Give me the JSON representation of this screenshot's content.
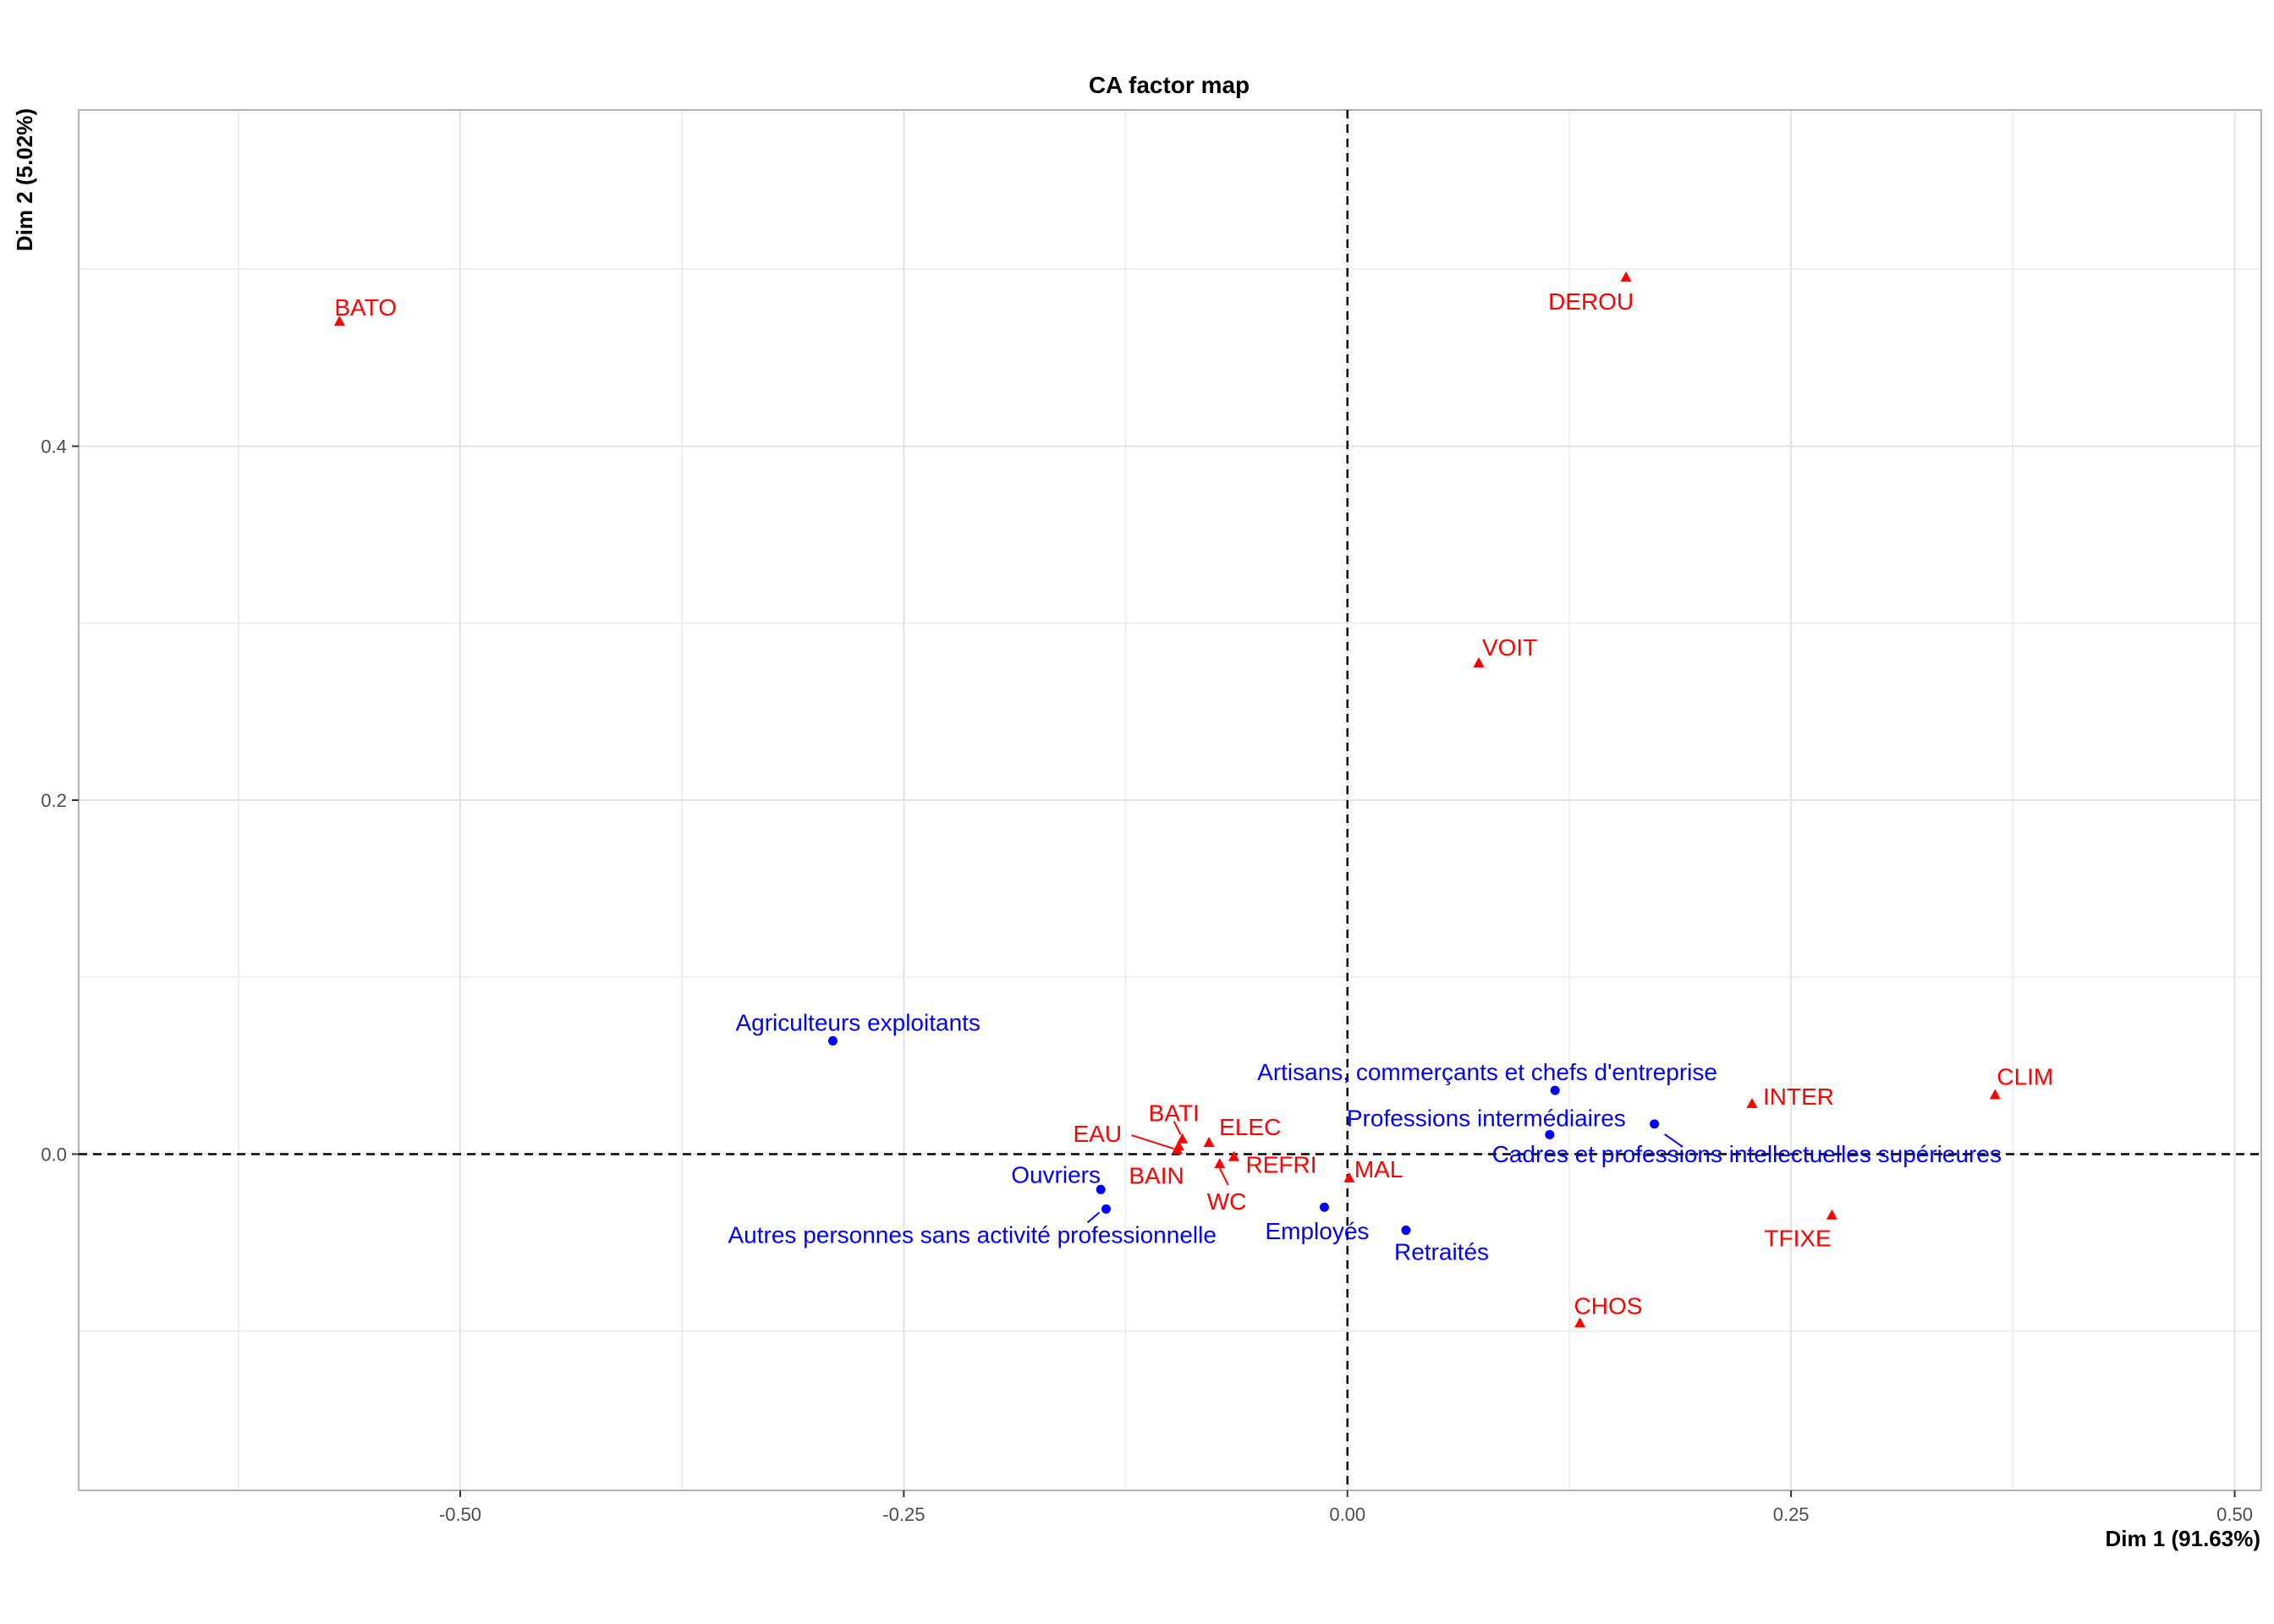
{
  "chart_data": {
    "type": "scatter",
    "title": "CA factor map",
    "xlabel": "Dim 1 (91.63%)",
    "ylabel": "Dim 2 (5.02%)",
    "xlim": [
      -0.715,
      0.515
    ],
    "ylim": [
      -0.19,
      0.59
    ],
    "x_ticks": [
      -0.5,
      -0.25,
      0.0,
      0.25,
      0.5
    ],
    "x_tick_labels": [
      "-0.50",
      "-0.25",
      "0.00",
      "0.25",
      "0.50"
    ],
    "y_ticks": [
      0.0,
      0.2,
      0.4
    ],
    "y_tick_labels": [
      "0.0",
      "0.2",
      "0.4"
    ],
    "grid": true,
    "reference_lines": {
      "x": 0,
      "y": 0,
      "style": "dashed"
    },
    "series": [
      {
        "group": "rows",
        "color": "#0000ff",
        "marker": "circle",
        "points": [
          {
            "label": "Agriculteurs exploitants",
            "x": -0.29,
            "y": 0.064
          },
          {
            "label": "Artisans, commerçants et chefs d'entreprise",
            "x": 0.117,
            "y": 0.036
          },
          {
            "label": "Professions intermédiaires",
            "x": 0.114,
            "y": 0.011
          },
          {
            "label": "Cadres et professions intellectuelles supérieures",
            "x": 0.173,
            "y": 0.017
          },
          {
            "label": "Ouvriers",
            "x": -0.139,
            "y": -0.02
          },
          {
            "label": "Autres personnes sans activité professionnelle",
            "x": -0.136,
            "y": -0.031
          },
          {
            "label": "Employés",
            "x": -0.013,
            "y": -0.03
          },
          {
            "label": "Retraités",
            "x": 0.033,
            "y": -0.043
          }
        ]
      },
      {
        "group": "columns",
        "color": "#ff0000",
        "marker": "triangle",
        "points": [
          {
            "label": "BATO",
            "x": -0.568,
            "y": 0.47
          },
          {
            "label": "DEROU",
            "x": 0.157,
            "y": 0.495
          },
          {
            "label": "VOIT",
            "x": 0.074,
            "y": 0.277
          },
          {
            "label": "CLIM",
            "x": 0.365,
            "y": 0.033
          },
          {
            "label": "INTER",
            "x": 0.228,
            "y": 0.028
          },
          {
            "label": "BATI",
            "x": -0.093,
            "y": 0.008
          },
          {
            "label": "EAU",
            "x": -0.095,
            "y": 0.004
          },
          {
            "label": "ELEC",
            "x": -0.078,
            "y": 0.006
          },
          {
            "label": "BAIN",
            "x": -0.096,
            "y": 0.002
          },
          {
            "label": "REFRI",
            "x": -0.064,
            "y": -0.002
          },
          {
            "label": "WC",
            "x": -0.072,
            "y": -0.006
          },
          {
            "label": "MAL",
            "x": 0.001,
            "y": -0.014
          },
          {
            "label": "TFIXE",
            "x": 0.273,
            "y": -0.035
          },
          {
            "label": "CHOS",
            "x": 0.131,
            "y": -0.096
          }
        ]
      }
    ]
  }
}
